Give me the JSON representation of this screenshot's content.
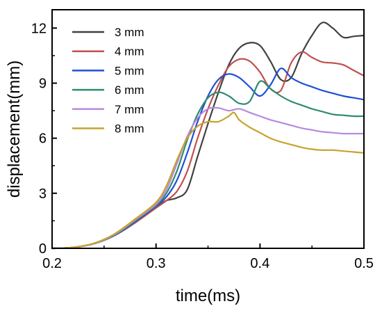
{
  "chart_data": {
    "type": "line",
    "xlabel": "time(ms)",
    "ylabel": "displacement(mm)",
    "xlim": [
      0.2,
      0.5
    ],
    "ylim": [
      0,
      13
    ],
    "xticks": [
      0.2,
      0.3,
      0.4,
      0.5
    ],
    "xtick_labels": [
      "0.2",
      "0.3",
      "0.4",
      "0.5"
    ],
    "yticks": [
      0,
      3,
      6,
      9,
      12
    ],
    "ytick_labels": [
      "0",
      "3",
      "6",
      "9",
      "12"
    ],
    "grid": false,
    "legend_position": "top-left",
    "series": [
      {
        "name": "3 mm",
        "color": "#404040",
        "points": [
          [
            0.2,
            0.0
          ],
          [
            0.22,
            0.05
          ],
          [
            0.24,
            0.25
          ],
          [
            0.26,
            0.7
          ],
          [
            0.28,
            1.4
          ],
          [
            0.3,
            2.25
          ],
          [
            0.31,
            2.6
          ],
          [
            0.32,
            2.75
          ],
          [
            0.33,
            3.2
          ],
          [
            0.34,
            5.0
          ],
          [
            0.35,
            6.8
          ],
          [
            0.36,
            8.5
          ],
          [
            0.37,
            10.0
          ],
          [
            0.38,
            10.9
          ],
          [
            0.39,
            11.2
          ],
          [
            0.4,
            11.05
          ],
          [
            0.41,
            10.2
          ],
          [
            0.42,
            9.2
          ],
          [
            0.43,
            9.3
          ],
          [
            0.44,
            10.6
          ],
          [
            0.45,
            11.6
          ],
          [
            0.46,
            12.3
          ],
          [
            0.47,
            12.0
          ],
          [
            0.48,
            11.5
          ],
          [
            0.49,
            11.55
          ],
          [
            0.5,
            11.6
          ]
        ]
      },
      {
        "name": "4 mm",
        "color": "#c0504d",
        "points": [
          [
            0.2,
            0.0
          ],
          [
            0.22,
            0.05
          ],
          [
            0.24,
            0.25
          ],
          [
            0.26,
            0.7
          ],
          [
            0.28,
            1.4
          ],
          [
            0.3,
            2.2
          ],
          [
            0.31,
            2.6
          ],
          [
            0.32,
            3.1
          ],
          [
            0.33,
            4.2
          ],
          [
            0.34,
            6.0
          ],
          [
            0.35,
            7.6
          ],
          [
            0.36,
            8.9
          ],
          [
            0.37,
            9.9
          ],
          [
            0.38,
            10.3
          ],
          [
            0.39,
            10.2
          ],
          [
            0.4,
            9.6
          ],
          [
            0.41,
            8.7
          ],
          [
            0.42,
            8.6
          ],
          [
            0.43,
            10.1
          ],
          [
            0.44,
            10.7
          ],
          [
            0.45,
            10.4
          ],
          [
            0.46,
            10.15
          ],
          [
            0.47,
            10.1
          ],
          [
            0.48,
            10.0
          ],
          [
            0.49,
            9.7
          ],
          [
            0.5,
            9.4
          ]
        ]
      },
      {
        "name": "5 mm",
        "color": "#1f4fd6",
        "points": [
          [
            0.2,
            0.0
          ],
          [
            0.22,
            0.05
          ],
          [
            0.24,
            0.25
          ],
          [
            0.26,
            0.7
          ],
          [
            0.28,
            1.45
          ],
          [
            0.3,
            2.3
          ],
          [
            0.31,
            2.8
          ],
          [
            0.32,
            3.7
          ],
          [
            0.33,
            5.2
          ],
          [
            0.34,
            6.9
          ],
          [
            0.35,
            8.3
          ],
          [
            0.36,
            9.2
          ],
          [
            0.37,
            9.5
          ],
          [
            0.38,
            9.3
          ],
          [
            0.39,
            8.8
          ],
          [
            0.4,
            8.3
          ],
          [
            0.41,
            8.9
          ],
          [
            0.42,
            9.8
          ],
          [
            0.43,
            9.3
          ],
          [
            0.44,
            9.0
          ],
          [
            0.45,
            8.8
          ],
          [
            0.46,
            8.6
          ],
          [
            0.47,
            8.45
          ],
          [
            0.48,
            8.3
          ],
          [
            0.49,
            8.2
          ],
          [
            0.5,
            8.1
          ]
        ]
      },
      {
        "name": "6 mm",
        "color": "#2e8b6e",
        "points": [
          [
            0.2,
            0.0
          ],
          [
            0.22,
            0.05
          ],
          [
            0.24,
            0.25
          ],
          [
            0.26,
            0.72
          ],
          [
            0.28,
            1.5
          ],
          [
            0.3,
            2.35
          ],
          [
            0.31,
            3.0
          ],
          [
            0.32,
            4.2
          ],
          [
            0.33,
            5.9
          ],
          [
            0.34,
            7.3
          ],
          [
            0.35,
            8.2
          ],
          [
            0.36,
            8.5
          ],
          [
            0.37,
            8.3
          ],
          [
            0.38,
            7.9
          ],
          [
            0.39,
            8.0
          ],
          [
            0.4,
            9.1
          ],
          [
            0.41,
            8.7
          ],
          [
            0.42,
            8.3
          ],
          [
            0.43,
            8.0
          ],
          [
            0.44,
            7.8
          ],
          [
            0.45,
            7.6
          ],
          [
            0.46,
            7.45
          ],
          [
            0.47,
            7.3
          ],
          [
            0.48,
            7.25
          ],
          [
            0.49,
            7.2
          ],
          [
            0.5,
            7.2
          ]
        ]
      },
      {
        "name": "7 mm",
        "color": "#b58ae0",
        "points": [
          [
            0.2,
            0.0
          ],
          [
            0.22,
            0.05
          ],
          [
            0.24,
            0.25
          ],
          [
            0.26,
            0.75
          ],
          [
            0.28,
            1.55
          ],
          [
            0.3,
            2.4
          ],
          [
            0.31,
            3.2
          ],
          [
            0.32,
            4.6
          ],
          [
            0.33,
            6.1
          ],
          [
            0.34,
            7.1
          ],
          [
            0.35,
            7.6
          ],
          [
            0.36,
            7.65
          ],
          [
            0.37,
            7.5
          ],
          [
            0.38,
            7.6
          ],
          [
            0.39,
            7.4
          ],
          [
            0.4,
            7.2
          ],
          [
            0.41,
            7.0
          ],
          [
            0.42,
            6.85
          ],
          [
            0.43,
            6.7
          ],
          [
            0.44,
            6.55
          ],
          [
            0.45,
            6.45
          ],
          [
            0.46,
            6.35
          ],
          [
            0.47,
            6.3
          ],
          [
            0.48,
            6.25
          ],
          [
            0.49,
            6.25
          ],
          [
            0.5,
            6.25
          ]
        ]
      },
      {
        "name": "8 mm",
        "color": "#c9a22a",
        "points": [
          [
            0.2,
            0.0
          ],
          [
            0.22,
            0.05
          ],
          [
            0.24,
            0.27
          ],
          [
            0.26,
            0.78
          ],
          [
            0.28,
            1.6
          ],
          [
            0.3,
            2.5
          ],
          [
            0.31,
            3.4
          ],
          [
            0.32,
            4.8
          ],
          [
            0.33,
            6.0
          ],
          [
            0.34,
            6.65
          ],
          [
            0.35,
            6.9
          ],
          [
            0.36,
            6.9
          ],
          [
            0.37,
            7.2
          ],
          [
            0.375,
            7.4
          ],
          [
            0.38,
            7.0
          ],
          [
            0.39,
            6.6
          ],
          [
            0.4,
            6.3
          ],
          [
            0.41,
            6.0
          ],
          [
            0.42,
            5.8
          ],
          [
            0.43,
            5.65
          ],
          [
            0.44,
            5.5
          ],
          [
            0.45,
            5.4
          ],
          [
            0.46,
            5.35
          ],
          [
            0.47,
            5.35
          ],
          [
            0.48,
            5.3
          ],
          [
            0.49,
            5.25
          ],
          [
            0.5,
            5.2
          ]
        ]
      }
    ]
  }
}
